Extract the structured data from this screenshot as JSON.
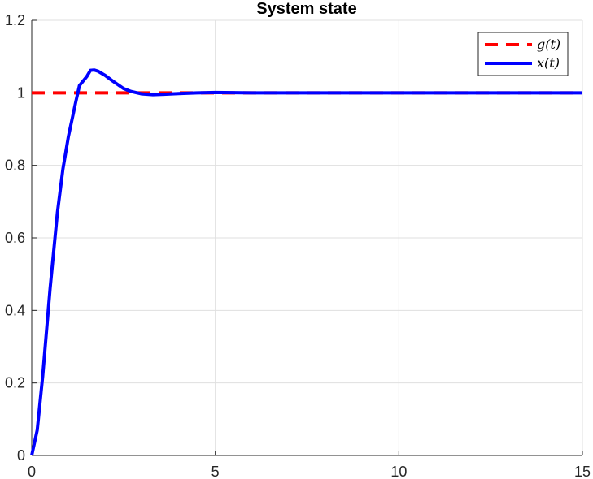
{
  "chart_data": {
    "type": "line",
    "title": "System state",
    "xlabel": "",
    "ylabel": "",
    "xlim": [
      0,
      15
    ],
    "ylim": [
      0,
      1.2
    ],
    "xticks": [
      0,
      5,
      10,
      15
    ],
    "yticks": [
      0,
      0.2,
      0.4,
      0.6,
      0.8,
      1,
      1.2
    ],
    "xtick_labels": [
      "0",
      "5",
      "10",
      "15"
    ],
    "ytick_labels": [
      "0",
      "0.2",
      "0.4",
      "0.6",
      "0.8",
      "1",
      "1.2"
    ],
    "grid": true,
    "legend_position": "top-right",
    "series": [
      {
        "name": "g(t)",
        "color": "#ff0000",
        "style": "dashed",
        "x": [
          0,
          15
        ],
        "y": [
          1,
          1
        ]
      },
      {
        "name": "x(t)",
        "color": "#0000ff",
        "style": "solid",
        "x": [
          0,
          0.15,
          0.3,
          0.5,
          0.7,
          0.85,
          1.0,
          1.2,
          1.3,
          1.5,
          1.6,
          1.7,
          1.8,
          2.0,
          2.2,
          2.5,
          2.7,
          3.0,
          3.3,
          3.6,
          4.0,
          4.5,
          5.0,
          6.0,
          8.0,
          10.0,
          12.0,
          15.0
        ],
        "y": [
          0,
          0.07,
          0.22,
          0.46,
          0.67,
          0.79,
          0.88,
          0.975,
          1.02,
          1.045,
          1.062,
          1.063,
          1.06,
          1.048,
          1.033,
          1.012,
          1.004,
          0.997,
          0.995,
          0.996,
          0.998,
          1.0,
          1.001,
          1.0,
          1.0,
          1.0,
          1.0,
          1.0
        ]
      }
    ]
  }
}
